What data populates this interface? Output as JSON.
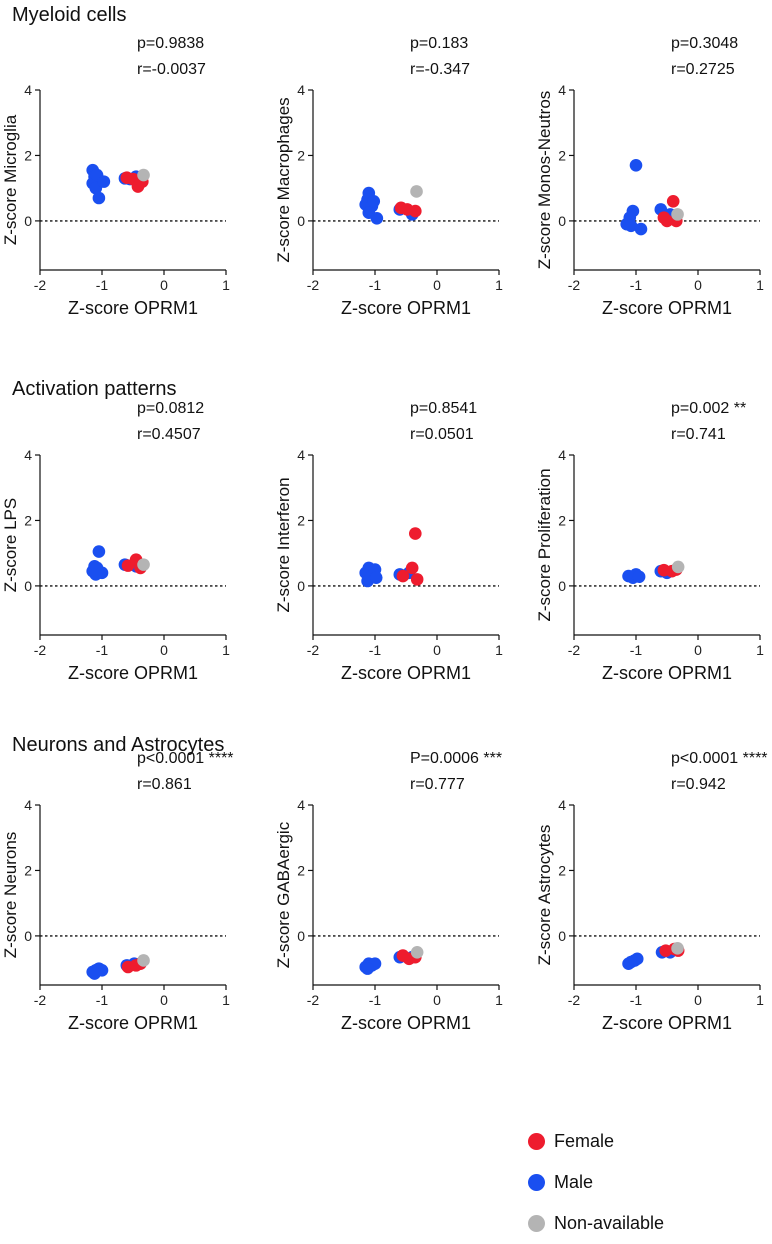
{
  "sections": [
    {
      "title": "Myeloid cells"
    },
    {
      "title": "Activation patterns"
    },
    {
      "title": "Neurons and Astrocytes"
    }
  ],
  "legend": [
    {
      "label": "Female",
      "color": "#ee1c2e"
    },
    {
      "label": "Male",
      "color": "#1a4ff0"
    },
    {
      "label": "Non-available",
      "color": "#b4b4b4"
    }
  ],
  "chart_data": [
    {
      "type": "scatter",
      "ylabel": "Z-score Microglia",
      "xlabel": "Z-score OPRM1",
      "stats": [
        "p=0.9838",
        "r=-0.0037"
      ],
      "xlim": [
        -2,
        1
      ],
      "ylim": [
        -1.5,
        4
      ],
      "xticks": [
        -2,
        -1,
        0,
        1
      ],
      "yticks": [
        0,
        2,
        4
      ],
      "xtick_labels": [
        "-2",
        "-1",
        "0",
        "1"
      ],
      "ytick_labels": [
        "0",
        "2",
        "4"
      ],
      "reference_y": 0,
      "points": [
        {
          "x": -1.15,
          "y": 1.55,
          "group": "male"
        },
        {
          "x": -1.12,
          "y": 1.35,
          "group": "male"
        },
        {
          "x": -1.15,
          "y": 1.15,
          "group": "male"
        },
        {
          "x": -1.1,
          "y": 1.0,
          "group": "male"
        },
        {
          "x": -1.05,
          "y": 0.7,
          "group": "male"
        },
        {
          "x": -1.08,
          "y": 1.4,
          "group": "male"
        },
        {
          "x": -0.97,
          "y": 1.2,
          "group": "male"
        },
        {
          "x": -0.63,
          "y": 1.3,
          "group": "male"
        },
        {
          "x": -0.55,
          "y": 1.28,
          "group": "male"
        },
        {
          "x": -0.45,
          "y": 1.35,
          "group": "male"
        },
        {
          "x": -0.6,
          "y": 1.32,
          "group": "female"
        },
        {
          "x": -0.5,
          "y": 1.28,
          "group": "female"
        },
        {
          "x": -0.42,
          "y": 1.05,
          "group": "female"
        },
        {
          "x": -0.35,
          "y": 1.2,
          "group": "female"
        },
        {
          "x": -0.33,
          "y": 1.4,
          "group": "na"
        }
      ]
    },
    {
      "type": "scatter",
      "ylabel": "Z-score Macrophages",
      "xlabel": "Z-score OPRM1",
      "stats": [
        "p=0.183",
        "r=-0.347"
      ],
      "xlim": [
        -2,
        1
      ],
      "ylim": [
        -1.5,
        4
      ],
      "xticks": [
        -2,
        -1,
        0,
        1
      ],
      "yticks": [
        0,
        2,
        4
      ],
      "xtick_labels": [
        "-2",
        "-1",
        "0",
        "1"
      ],
      "ytick_labels": [
        "0",
        "2",
        "4"
      ],
      "reference_y": 0,
      "points": [
        {
          "x": -1.1,
          "y": 0.85,
          "group": "male"
        },
        {
          "x": -1.12,
          "y": 0.65,
          "group": "male"
        },
        {
          "x": -1.15,
          "y": 0.5,
          "group": "male"
        },
        {
          "x": -1.05,
          "y": 0.45,
          "group": "male"
        },
        {
          "x": -1.1,
          "y": 0.25,
          "group": "male"
        },
        {
          "x": -0.97,
          "y": 0.08,
          "group": "male"
        },
        {
          "x": -1.02,
          "y": 0.6,
          "group": "male"
        },
        {
          "x": -0.6,
          "y": 0.35,
          "group": "male"
        },
        {
          "x": -0.4,
          "y": 0.2,
          "group": "male"
        },
        {
          "x": -0.58,
          "y": 0.4,
          "group": "female"
        },
        {
          "x": -0.48,
          "y": 0.35,
          "group": "female"
        },
        {
          "x": -0.35,
          "y": 0.3,
          "group": "female"
        },
        {
          "x": -0.33,
          "y": 0.9,
          "group": "na"
        }
      ]
    },
    {
      "type": "scatter",
      "ylabel": "Z-score Monos-Neutros",
      "xlabel": "Z-score OPRM1",
      "stats": [
        "p=0.3048",
        "r=0.2725"
      ],
      "xlim": [
        -2,
        1
      ],
      "ylim": [
        -1.5,
        4
      ],
      "xticks": [
        -2,
        -1,
        0,
        1
      ],
      "yticks": [
        0,
        2,
        4
      ],
      "xtick_labels": [
        "-2",
        "-1",
        "0",
        "1"
      ],
      "ytick_labels": [
        "0",
        "2",
        "4"
      ],
      "reference_y": 0,
      "points": [
        {
          "x": -1.0,
          "y": 1.7,
          "group": "male"
        },
        {
          "x": -1.05,
          "y": 0.3,
          "group": "male"
        },
        {
          "x": -1.1,
          "y": 0.1,
          "group": "male"
        },
        {
          "x": -1.15,
          "y": -0.1,
          "group": "male"
        },
        {
          "x": -1.08,
          "y": -0.15,
          "group": "male"
        },
        {
          "x": -0.92,
          "y": -0.25,
          "group": "male"
        },
        {
          "x": -0.6,
          "y": 0.35,
          "group": "male"
        },
        {
          "x": -0.45,
          "y": 0.2,
          "group": "male"
        },
        {
          "x": -0.4,
          "y": 0.6,
          "group": "female"
        },
        {
          "x": -0.55,
          "y": 0.1,
          "group": "female"
        },
        {
          "x": -0.5,
          "y": 0.0,
          "group": "female"
        },
        {
          "x": -0.35,
          "y": 0.0,
          "group": "female"
        },
        {
          "x": -0.33,
          "y": 0.2,
          "group": "na"
        }
      ]
    },
    {
      "type": "scatter",
      "ylabel": "Z-score LPS",
      "xlabel": "Z-score OPRM1",
      "stats": [
        "p=0.0812",
        "r=0.4507"
      ],
      "xlim": [
        -2,
        1
      ],
      "ylim": [
        -1.5,
        4
      ],
      "xticks": [
        -2,
        -1,
        0,
        1
      ],
      "yticks": [
        0,
        2,
        4
      ],
      "xtick_labels": [
        "-2",
        "-1",
        "0",
        "1"
      ],
      "ytick_labels": [
        "0",
        "2",
        "4"
      ],
      "reference_y": 0,
      "points": [
        {
          "x": -1.05,
          "y": 1.05,
          "group": "male"
        },
        {
          "x": -1.12,
          "y": 0.6,
          "group": "male"
        },
        {
          "x": -1.15,
          "y": 0.45,
          "group": "male"
        },
        {
          "x": -1.08,
          "y": 0.55,
          "group": "male"
        },
        {
          "x": -1.1,
          "y": 0.35,
          "group": "male"
        },
        {
          "x": -1.0,
          "y": 0.4,
          "group": "male"
        },
        {
          "x": -0.63,
          "y": 0.65,
          "group": "male"
        },
        {
          "x": -0.45,
          "y": 0.6,
          "group": "male"
        },
        {
          "x": -0.58,
          "y": 0.62,
          "group": "female"
        },
        {
          "x": -0.45,
          "y": 0.8,
          "group": "female"
        },
        {
          "x": -0.38,
          "y": 0.55,
          "group": "female"
        },
        {
          "x": -0.33,
          "y": 0.65,
          "group": "na"
        }
      ]
    },
    {
      "type": "scatter",
      "ylabel": "Z-score Interferon",
      "xlabel": "Z-score OPRM1",
      "stats": [
        "p=0.8541",
        "r=0.0501"
      ],
      "xlim": [
        -2,
        1
      ],
      "ylim": [
        -1.5,
        4
      ],
      "xticks": [
        -2,
        -1,
        0,
        1
      ],
      "yticks": [
        0,
        2,
        4
      ],
      "xtick_labels": [
        "-2",
        "-1",
        "0",
        "1"
      ],
      "ytick_labels": [
        "0",
        "2",
        "4"
      ],
      "reference_y": 0,
      "points": [
        {
          "x": -1.1,
          "y": 0.55,
          "group": "male"
        },
        {
          "x": -1.15,
          "y": 0.4,
          "group": "male"
        },
        {
          "x": -1.05,
          "y": 0.3,
          "group": "male"
        },
        {
          "x": -1.12,
          "y": 0.15,
          "group": "male"
        },
        {
          "x": -1.0,
          "y": 0.5,
          "group": "male"
        },
        {
          "x": -0.98,
          "y": 0.25,
          "group": "male"
        },
        {
          "x": -0.6,
          "y": 0.35,
          "group": "male"
        },
        {
          "x": -0.45,
          "y": 0.4,
          "group": "male"
        },
        {
          "x": -0.35,
          "y": 1.6,
          "group": "female"
        },
        {
          "x": -0.55,
          "y": 0.3,
          "group": "female"
        },
        {
          "x": -0.4,
          "y": 0.55,
          "group": "female"
        },
        {
          "x": -0.32,
          "y": 0.2,
          "group": "female"
        }
      ]
    },
    {
      "type": "scatter",
      "ylabel": "Z-score Proliferation",
      "xlabel": "Z-score OPRM1",
      "stats": [
        "p=0.002 **",
        "r=0.741"
      ],
      "xlim": [
        -2,
        1
      ],
      "ylim": [
        -1.5,
        4
      ],
      "xticks": [
        -2,
        -1,
        0,
        1
      ],
      "yticks": [
        0,
        2,
        4
      ],
      "xtick_labels": [
        "-2",
        "-1",
        "0",
        "1"
      ],
      "ytick_labels": [
        "0",
        "2",
        "4"
      ],
      "reference_y": 0,
      "points": [
        {
          "x": -1.12,
          "y": 0.3,
          "group": "male"
        },
        {
          "x": -1.05,
          "y": 0.25,
          "group": "male"
        },
        {
          "x": -1.0,
          "y": 0.35,
          "group": "male"
        },
        {
          "x": -0.95,
          "y": 0.28,
          "group": "male"
        },
        {
          "x": -0.6,
          "y": 0.45,
          "group": "male"
        },
        {
          "x": -0.5,
          "y": 0.4,
          "group": "male"
        },
        {
          "x": -0.55,
          "y": 0.48,
          "group": "female"
        },
        {
          "x": -0.42,
          "y": 0.45,
          "group": "female"
        },
        {
          "x": -0.35,
          "y": 0.5,
          "group": "female"
        },
        {
          "x": -0.32,
          "y": 0.58,
          "group": "na"
        }
      ]
    },
    {
      "type": "scatter",
      "ylabel": "Z-score Neurons",
      "xlabel": "Z-score OPRM1",
      "stats": [
        "p<0.0001 ****",
        "r=0.861"
      ],
      "xlim": [
        -2,
        1
      ],
      "ylim": [
        -1.5,
        4
      ],
      "xticks": [
        -2,
        -1,
        0,
        1
      ],
      "yticks": [
        0,
        2,
        4
      ],
      "xtick_labels": [
        "-2",
        "-1",
        "0",
        "1"
      ],
      "ytick_labels": [
        "0",
        "2",
        "4"
      ],
      "reference_y": 0,
      "points": [
        {
          "x": -1.15,
          "y": -1.1,
          "group": "male"
        },
        {
          "x": -1.1,
          "y": -1.05,
          "group": "male"
        },
        {
          "x": -1.05,
          "y": -1.0,
          "group": "male"
        },
        {
          "x": -1.0,
          "y": -1.05,
          "group": "male"
        },
        {
          "x": -1.12,
          "y": -1.15,
          "group": "male"
        },
        {
          "x": -0.6,
          "y": -0.9,
          "group": "male"
        },
        {
          "x": -0.48,
          "y": -0.85,
          "group": "male"
        },
        {
          "x": -0.58,
          "y": -0.95,
          "group": "female"
        },
        {
          "x": -0.45,
          "y": -0.9,
          "group": "female"
        },
        {
          "x": -0.38,
          "y": -0.85,
          "group": "female"
        },
        {
          "x": -0.33,
          "y": -0.75,
          "group": "na"
        }
      ]
    },
    {
      "type": "scatter",
      "ylabel": "Z-score GABAergic",
      "xlabel": "Z-score OPRM1",
      "stats": [
        "P=0.0006 ***",
        "r=0.777"
      ],
      "xlim": [
        -2,
        1
      ],
      "ylim": [
        -1.5,
        4
      ],
      "xticks": [
        -2,
        -1,
        0,
        1
      ],
      "yticks": [
        0,
        2,
        4
      ],
      "xtick_labels": [
        "-2",
        "-1",
        "0",
        "1"
      ],
      "ytick_labels": [
        "0",
        "2",
        "4"
      ],
      "reference_y": 0,
      "points": [
        {
          "x": -1.15,
          "y": -0.95,
          "group": "male"
        },
        {
          "x": -1.1,
          "y": -0.85,
          "group": "male"
        },
        {
          "x": -1.05,
          "y": -0.9,
          "group": "male"
        },
        {
          "x": -1.0,
          "y": -0.85,
          "group": "male"
        },
        {
          "x": -1.12,
          "y": -1.0,
          "group": "male"
        },
        {
          "x": -0.6,
          "y": -0.65,
          "group": "male"
        },
        {
          "x": -0.4,
          "y": -0.65,
          "group": "male"
        },
        {
          "x": -0.55,
          "y": -0.6,
          "group": "female"
        },
        {
          "x": -0.45,
          "y": -0.7,
          "group": "female"
        },
        {
          "x": -0.35,
          "y": -0.65,
          "group": "female"
        },
        {
          "x": -0.32,
          "y": -0.5,
          "group": "na"
        }
      ]
    },
    {
      "type": "scatter",
      "ylabel": "Z-score Astrocytes",
      "xlabel": "Z-score OPRM1",
      "stats": [
        "p<0.0001 ****",
        "r=0.942"
      ],
      "xlim": [
        -2,
        1
      ],
      "ylim": [
        -1.5,
        4
      ],
      "xticks": [
        -2,
        -1,
        0,
        1
      ],
      "yticks": [
        0,
        2,
        4
      ],
      "xtick_labels": [
        "-2",
        "-1",
        "0",
        "1"
      ],
      "ytick_labels": [
        "0",
        "2",
        "4"
      ],
      "reference_y": 0,
      "points": [
        {
          "x": -1.12,
          "y": -0.85,
          "group": "male"
        },
        {
          "x": -1.08,
          "y": -0.8,
          "group": "male"
        },
        {
          "x": -1.02,
          "y": -0.75,
          "group": "male"
        },
        {
          "x": -0.98,
          "y": -0.7,
          "group": "male"
        },
        {
          "x": -0.58,
          "y": -0.5,
          "group": "male"
        },
        {
          "x": -0.45,
          "y": -0.5,
          "group": "male"
        },
        {
          "x": -0.52,
          "y": -0.45,
          "group": "female"
        },
        {
          "x": -0.38,
          "y": -0.4,
          "group": "female"
        },
        {
          "x": -0.32,
          "y": -0.45,
          "group": "female"
        },
        {
          "x": -0.33,
          "y": -0.38,
          "group": "na"
        }
      ]
    }
  ]
}
